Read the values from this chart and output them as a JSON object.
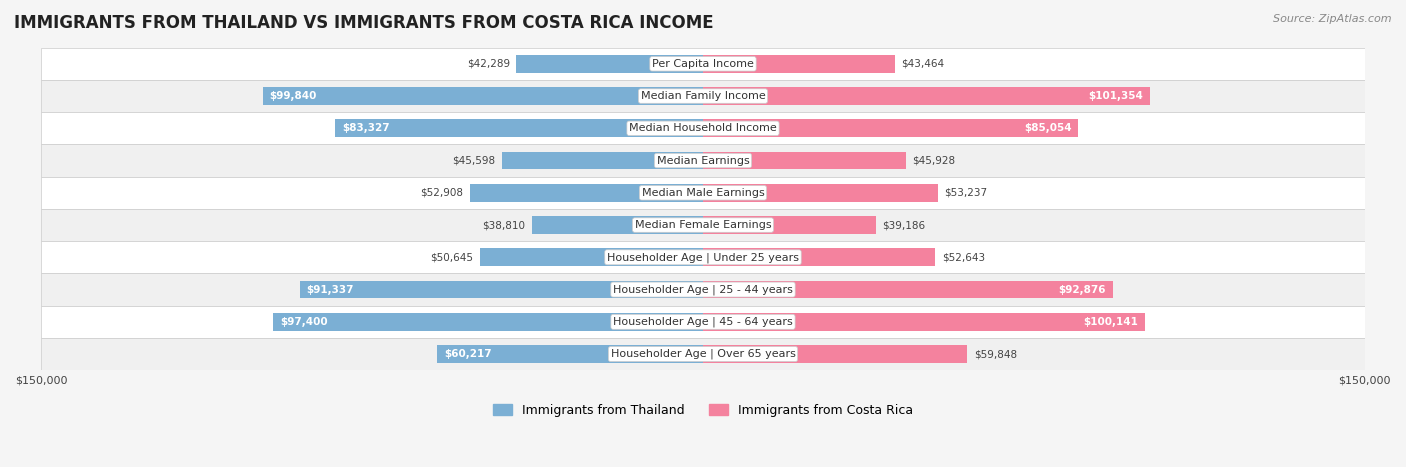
{
  "title": "IMMIGRANTS FROM THAILAND VS IMMIGRANTS FROM COSTA RICA INCOME",
  "source": "Source: ZipAtlas.com",
  "categories": [
    "Per Capita Income",
    "Median Family Income",
    "Median Household Income",
    "Median Earnings",
    "Median Male Earnings",
    "Median Female Earnings",
    "Householder Age | Under 25 years",
    "Householder Age | 25 - 44 years",
    "Householder Age | 45 - 64 years",
    "Householder Age | Over 65 years"
  ],
  "thailand_values": [
    42289,
    99840,
    83327,
    45598,
    52908,
    38810,
    50645,
    91337,
    97400,
    60217
  ],
  "costa_rica_values": [
    43464,
    101354,
    85054,
    45928,
    53237,
    39186,
    52643,
    92876,
    100141,
    59848
  ],
  "thailand_labels": [
    "$42,289",
    "$99,840",
    "$83,327",
    "$45,598",
    "$52,908",
    "$38,810",
    "$50,645",
    "$91,337",
    "$97,400",
    "$60,217"
  ],
  "costa_rica_labels": [
    "$43,464",
    "$101,354",
    "$85,054",
    "$45,928",
    "$53,237",
    "$39,186",
    "$52,643",
    "$92,876",
    "$100,141",
    "$59,848"
  ],
  "thailand_color": "#7bafd4",
  "costa_rica_color": "#f4829e",
  "thailand_color_dark": "#4a86b8",
  "costa_rica_color_dark": "#e8507a",
  "max_value": 150000,
  "bar_height": 0.55,
  "background_color": "#f5f5f5",
  "row_bg_light": "#ffffff",
  "row_bg_dark": "#f0f0f0",
  "legend_thailand": "Immigrants from Thailand",
  "legend_costa_rica": "Immigrants from Costa Rica"
}
